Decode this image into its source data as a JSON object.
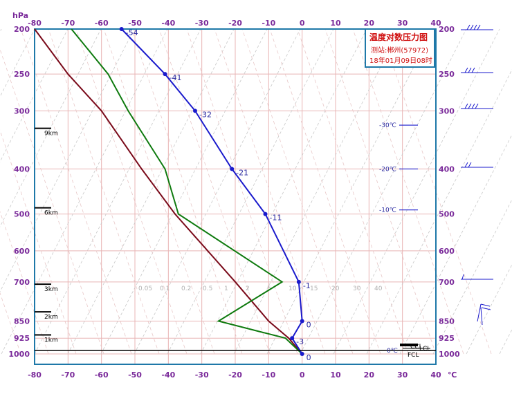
{
  "chart_data": {
    "type": "line",
    "title": "温度对数压力图",
    "station": "测站:郴州(57972)",
    "datetime": "18年01月09日08时",
    "y_unit": "hPa",
    "x_unit": "℃",
    "x_ticks": [
      -80,
      -70,
      -60,
      -50,
      -40,
      -30,
      -20,
      -10,
      0,
      10,
      20,
      30,
      40
    ],
    "x_tick_labels": [
      "-80",
      "-70",
      "-60",
      "-50",
      "-40",
      "-30",
      "-20",
      "-10",
      "0",
      "10",
      "20",
      "30",
      "40"
    ],
    "y_ticks": [
      200,
      250,
      300,
      400,
      500,
      600,
      700,
      850,
      925,
      1000
    ],
    "y_tick_labels": [
      "200",
      "250",
      "300",
      "400",
      "500",
      "600",
      "700",
      "850",
      "925",
      "1000"
    ],
    "xlim": [
      -80,
      40
    ],
    "ylim": [
      1000,
      200
    ],
    "height_marks": [
      {
        "label": "9km",
        "p": 327
      },
      {
        "label": "6km",
        "p": 485
      },
      {
        "label": "3km",
        "p": 708
      },
      {
        "label": "2km",
        "p": 812
      },
      {
        "label": "1km",
        "p": 910
      }
    ],
    "temperature": {
      "points": [
        {
          "p": 1000,
          "t": 0,
          "label": "0"
        },
        {
          "p": 925,
          "t": -3,
          "label": "-3"
        },
        {
          "p": 850,
          "t": 0,
          "label": "0"
        },
        {
          "p": 700,
          "t": -1,
          "label": "-1"
        },
        {
          "p": 500,
          "t": -11,
          "label": "-11"
        },
        {
          "p": 400,
          "t": -21,
          "label": "-21"
        },
        {
          "p": 300,
          "t": -32,
          "label": "-32"
        },
        {
          "p": 250,
          "t": -41,
          "label": "-41"
        },
        {
          "p": 200,
          "t": -54,
          "label": "-54"
        }
      ]
    },
    "dewpoint": {
      "points": [
        {
          "p": 1000,
          "t": 0
        },
        {
          "p": 925,
          "t": -5
        },
        {
          "p": 850,
          "t": -25
        },
        {
          "p": 700,
          "t": -6
        },
        {
          "p": 500,
          "t": -37
        },
        {
          "p": 400,
          "t": -41
        },
        {
          "p": 300,
          "t": -52
        },
        {
          "p": 250,
          "t": -58
        },
        {
          "p": 200,
          "t": -69
        }
      ]
    },
    "parcel": {
      "points": [
        {
          "p": 1000,
          "t": 0
        },
        {
          "p": 925,
          "t": -4
        },
        {
          "p": 850,
          "t": -10
        },
        {
          "p": 700,
          "t": -20
        },
        {
          "p": 500,
          "t": -38
        },
        {
          "p": 400,
          "t": -48
        },
        {
          "p": 300,
          "t": -60
        },
        {
          "p": 250,
          "t": -70
        },
        {
          "p": 200,
          "t": -80
        }
      ]
    },
    "isotherm_markers": [
      {
        "label": "-30℃",
        "p": 322
      },
      {
        "label": "-20℃",
        "p": 400
      },
      {
        "label": "-10℃",
        "p": 490
      }
    ],
    "mixing_ratio_labels": [
      "0.05",
      "0.1",
      "0.2",
      "0.5",
      "1",
      "2",
      "5",
      "10",
      "15",
      "20",
      "30",
      "40"
    ],
    "special_labels": [
      "0℃",
      "LCL",
      "CCL",
      "FCL"
    ]
  },
  "colors": {
    "axis_frame": "#1e78a8",
    "tick_text": "#7a2a9a",
    "temperature": "#1a1acc",
    "dewpoint": "#0e7a0e",
    "parcel": "#7a0a1a",
    "grid_isobar": "#e8b4b4",
    "grid_isotherm": "#e8b4b4",
    "grid_adiabat": "#c8c8c8",
    "title_text": "#d01010"
  }
}
